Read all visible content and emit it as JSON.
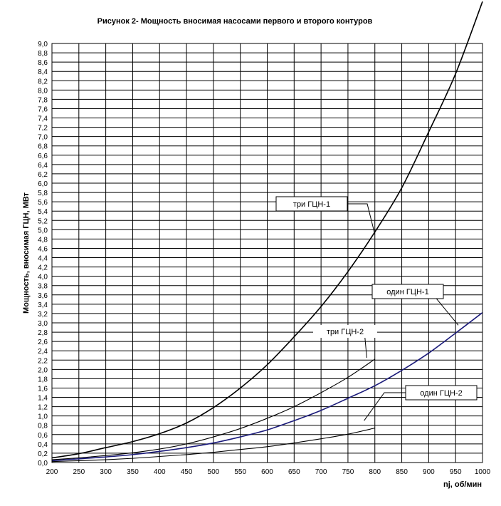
{
  "chart_data": {
    "type": "line",
    "title": "Рисунок 2- Мощность вносимая насосами первого и второго контуров",
    "xlabel": "nj, об/мин",
    "ylabel": "Мощность, вносимая ГЦН, МВт",
    "xlim": [
      200,
      1000
    ],
    "ylim": [
      0,
      9
    ],
    "x_ticks": [
      "200",
      "250",
      "300",
      "350",
      "400",
      "450",
      "500",
      "550",
      "600",
      "650",
      "700",
      "750",
      "800",
      "850",
      "900",
      "950",
      "1000"
    ],
    "y_ticks": [
      "0,0",
      "0,2",
      "0,4",
      "0,6",
      "0,8",
      "1,0",
      "1,2",
      "1,4",
      "1,6",
      "1,8",
      "2,0",
      "2,2",
      "2,4",
      "2,6",
      "2,8",
      "3,0",
      "3,2",
      "3,4",
      "3,6",
      "3,8",
      "4,0",
      "4,2",
      "4,4",
      "4,6",
      "4,8",
      "5,0",
      "5,2",
      "5,4",
      "5,6",
      "5,8",
      "6,0",
      "6,2",
      "6,4",
      "6,6",
      "6,8",
      "7,0",
      "7,2",
      "7,4",
      "7,6",
      "7,8",
      "8,0",
      "8,2",
      "8,4",
      "8,6",
      "8,8",
      "9,0"
    ],
    "grid": true,
    "series": [
      {
        "name": "три ГЦН-1",
        "color": "#000000",
        "x": [
          200,
          250,
          300,
          350,
          400,
          450,
          500,
          550,
          600,
          650,
          700,
          750,
          800,
          850,
          900,
          950,
          1000
        ],
        "values": [
          0.1,
          0.19,
          0.32,
          0.45,
          0.62,
          0.85,
          1.18,
          1.6,
          2.1,
          2.7,
          3.35,
          4.1,
          4.95,
          5.9,
          7.1,
          8.35,
          9.9
        ]
      },
      {
        "name": "один ГЦН-1",
        "color": "#1a1a7a",
        "x": [
          200,
          250,
          300,
          350,
          400,
          450,
          500,
          550,
          600,
          650,
          700,
          750,
          800,
          850,
          900,
          950,
          1000
        ],
        "values": [
          0.04,
          0.08,
          0.12,
          0.17,
          0.24,
          0.32,
          0.42,
          0.55,
          0.7,
          0.9,
          1.12,
          1.38,
          1.65,
          1.98,
          2.35,
          2.78,
          3.22
        ]
      },
      {
        "name": "три ГЦН-2",
        "color": "#000000",
        "x": [
          200,
          250,
          300,
          350,
          400,
          450,
          500,
          550,
          600,
          650,
          700,
          750,
          800
        ],
        "values": [
          0.06,
          0.1,
          0.15,
          0.21,
          0.29,
          0.4,
          0.55,
          0.73,
          0.95,
          1.2,
          1.5,
          1.83,
          2.22
        ]
      },
      {
        "name": "один ГЦН-2",
        "color": "#000000",
        "x": [
          200,
          250,
          300,
          350,
          400,
          450,
          500,
          550,
          600,
          650,
          700,
          750,
          800
        ],
        "values": [
          0.02,
          0.04,
          0.06,
          0.09,
          0.13,
          0.17,
          0.22,
          0.28,
          0.34,
          0.42,
          0.51,
          0.61,
          0.74
        ]
      }
    ],
    "callouts": [
      {
        "label": "три ГЦН-1",
        "x": 800,
        "y": 4.9
      },
      {
        "label": "один ГЦН-1",
        "x": 955,
        "y": 2.95
      },
      {
        "label": "три ГЦН-2",
        "x": 785,
        "y": 2.25
      },
      {
        "label": "один ГЦН-2",
        "x": 780,
        "y": 0.9
      }
    ]
  }
}
